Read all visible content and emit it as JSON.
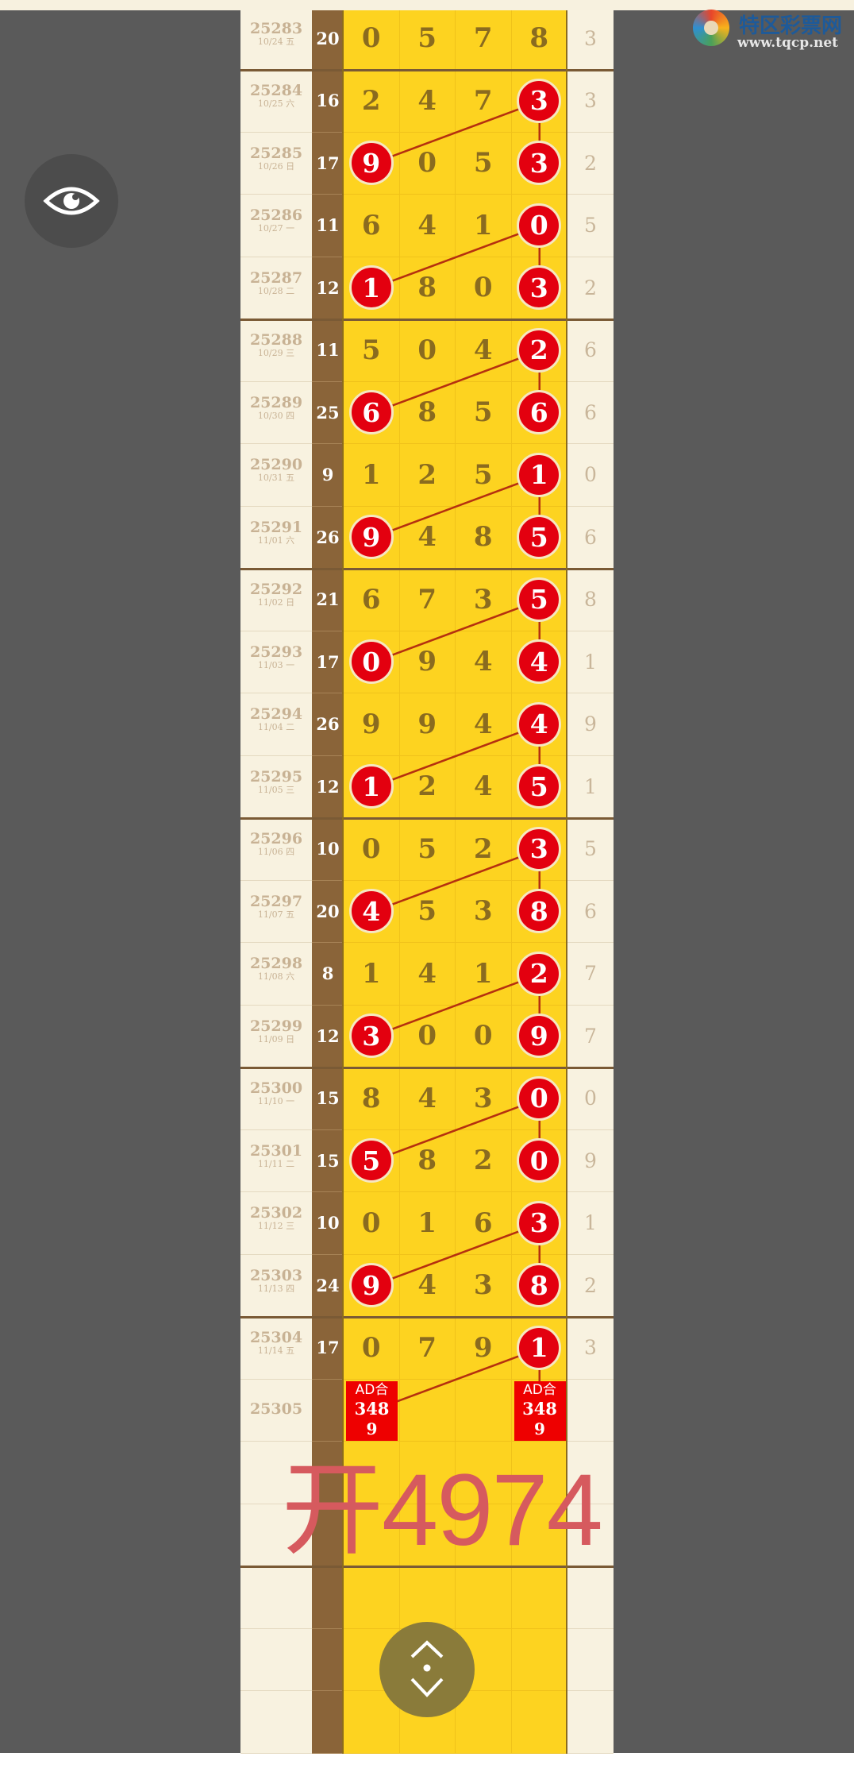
{
  "logo": {
    "name": "特区彩票网",
    "url": "www.tqcp.net"
  },
  "colors": {
    "ball": "#e3000f",
    "line": "#b5300f",
    "digit_column": "#fdd320",
    "sum_column": "#8a6439",
    "highlight_text": "#d65a5e"
  },
  "rows": [
    {
      "issue": "25283",
      "date": "10/24 五",
      "sum": "20",
      "digits": [
        "0",
        "5",
        "7",
        "8"
      ],
      "marked": [],
      "tail": "3"
    },
    {
      "issue": "25284",
      "date": "10/25 六",
      "sum": "16",
      "digits": [
        "2",
        "4",
        "7",
        "3"
      ],
      "marked": [
        3
      ],
      "tail": "3"
    },
    {
      "issue": "25285",
      "date": "10/26 日",
      "sum": "17",
      "digits": [
        "9",
        "0",
        "5",
        "3"
      ],
      "marked": [
        0,
        3
      ],
      "tail": "2"
    },
    {
      "issue": "25286",
      "date": "10/27 一",
      "sum": "11",
      "digits": [
        "6",
        "4",
        "1",
        "0"
      ],
      "marked": [
        3
      ],
      "tail": "5"
    },
    {
      "issue": "25287",
      "date": "10/28 二",
      "sum": "12",
      "digits": [
        "1",
        "8",
        "0",
        "3"
      ],
      "marked": [
        0,
        3
      ],
      "tail": "2"
    },
    {
      "issue": "25288",
      "date": "10/29 三",
      "sum": "11",
      "digits": [
        "5",
        "0",
        "4",
        "2"
      ],
      "marked": [
        3
      ],
      "tail": "6"
    },
    {
      "issue": "25289",
      "date": "10/30 四",
      "sum": "25",
      "digits": [
        "6",
        "8",
        "5",
        "6"
      ],
      "marked": [
        0,
        3
      ],
      "tail": "6"
    },
    {
      "issue": "25290",
      "date": "10/31 五",
      "sum": "9",
      "digits": [
        "1",
        "2",
        "5",
        "1"
      ],
      "marked": [
        3
      ],
      "tail": "0"
    },
    {
      "issue": "25291",
      "date": "11/01 六",
      "sum": "26",
      "digits": [
        "9",
        "4",
        "8",
        "5"
      ],
      "marked": [
        0,
        3
      ],
      "tail": "6"
    },
    {
      "issue": "25292",
      "date": "11/02 日",
      "sum": "21",
      "digits": [
        "6",
        "7",
        "3",
        "5"
      ],
      "marked": [
        3
      ],
      "tail": "8"
    },
    {
      "issue": "25293",
      "date": "11/03 一",
      "sum": "17",
      "digits": [
        "0",
        "9",
        "4",
        "4"
      ],
      "marked": [
        0,
        3
      ],
      "tail": "1"
    },
    {
      "issue": "25294",
      "date": "11/04 二",
      "sum": "26",
      "digits": [
        "9",
        "9",
        "4",
        "4"
      ],
      "marked": [
        3
      ],
      "tail": "9"
    },
    {
      "issue": "25295",
      "date": "11/05 三",
      "sum": "12",
      "digits": [
        "1",
        "2",
        "4",
        "5"
      ],
      "marked": [
        0,
        3
      ],
      "tail": "1"
    },
    {
      "issue": "25296",
      "date": "11/06 四",
      "sum": "10",
      "digits": [
        "0",
        "5",
        "2",
        "3"
      ],
      "marked": [
        3
      ],
      "tail": "5"
    },
    {
      "issue": "25297",
      "date": "11/07 五",
      "sum": "20",
      "digits": [
        "4",
        "5",
        "3",
        "8"
      ],
      "marked": [
        0,
        3
      ],
      "tail": "6"
    },
    {
      "issue": "25298",
      "date": "11/08 六",
      "sum": "8",
      "digits": [
        "1",
        "4",
        "1",
        "2"
      ],
      "marked": [
        3
      ],
      "tail": "7"
    },
    {
      "issue": "25299",
      "date": "11/09 日",
      "sum": "12",
      "digits": [
        "3",
        "0",
        "0",
        "9"
      ],
      "marked": [
        0,
        3
      ],
      "tail": "7"
    },
    {
      "issue": "25300",
      "date": "11/10 一",
      "sum": "15",
      "digits": [
        "8",
        "4",
        "3",
        "0"
      ],
      "marked": [
        3
      ],
      "tail": "0"
    },
    {
      "issue": "25301",
      "date": "11/11 二",
      "sum": "15",
      "digits": [
        "5",
        "8",
        "2",
        "0"
      ],
      "marked": [
        0,
        3
      ],
      "tail": "9"
    },
    {
      "issue": "25302",
      "date": "11/12 三",
      "sum": "10",
      "digits": [
        "0",
        "1",
        "6",
        "3"
      ],
      "marked": [
        3
      ],
      "tail": "1"
    },
    {
      "issue": "25303",
      "date": "11/13 四",
      "sum": "24",
      "digits": [
        "9",
        "4",
        "3",
        "8"
      ],
      "marked": [
        0,
        3
      ],
      "tail": "2"
    },
    {
      "issue": "25304",
      "date": "11/14 五",
      "sum": "17",
      "digits": [
        "0",
        "7",
        "9",
        "1"
      ],
      "marked": [
        3
      ],
      "tail": "3"
    }
  ],
  "prediction": {
    "issue": "25305",
    "label": "AD合",
    "numbers": "348",
    "extra": "9",
    "columns": [
      0,
      3
    ]
  },
  "result_text": "开4974",
  "buttons": {
    "eye": "eye-icon",
    "scroll": "scroll-up-down-icon"
  }
}
